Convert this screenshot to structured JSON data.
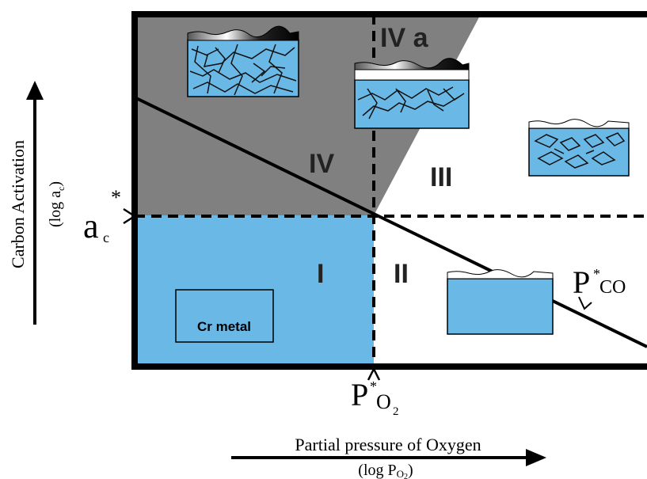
{
  "colors": {
    "dark_region": "#808080",
    "blue": "#6ab8e6",
    "frame": "#000000",
    "background": "#ffffff"
  },
  "regions": {
    "r1": "I",
    "r2": "II",
    "r3": "III",
    "r4": "IV",
    "r4a": "IV a"
  },
  "labels": {
    "cr_metal": "Cr metal",
    "ac_main": "a",
    "ac_sub": "c",
    "ac_star": "*",
    "pco_main": "P",
    "pco_star": "*",
    "pco_sub": "CO",
    "po2_main": "P",
    "po2_star": "*",
    "po2_sub": "O",
    "po2_sub2": "2"
  },
  "y_axis": {
    "title": "Carbon Activation",
    "sub_open": "(log a",
    "sub_sub": "c",
    "sub_close": ")"
  },
  "x_axis": {
    "title": "Partial pressure of Oxygen",
    "sub_open": "(log P",
    "sub_sub": "O",
    "sub_sub2": "2",
    "sub_close": ")"
  }
}
